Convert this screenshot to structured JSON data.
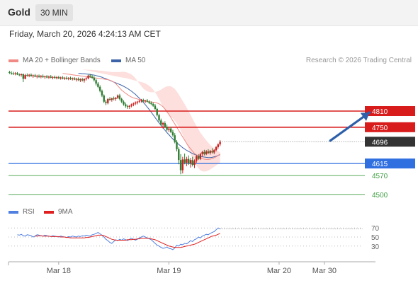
{
  "header": {
    "symbol": "Gold",
    "timeframe": "30 MIN",
    "datetime": "Friday, March 20, 2026 4:24:13 AM CET"
  },
  "legend": {
    "ma20_label": "MA 20 + Bollinger Bands",
    "ma50_label": "MA 50",
    "rsi_label": "RSI",
    "rsi_ma_label": "9MA",
    "research": "Research © 2026 Trading Central"
  },
  "colors": {
    "ma20": "#f08a84",
    "bollinger_fill": "#fdd9d7",
    "ma50": "#3d64a8",
    "bull_candle": "#cc1f1f",
    "bear_candle": "#2e7d32",
    "resistance": "#d81b1b",
    "pivot": "#2f6fe0",
    "support": "#43a047",
    "last_price": "#333333",
    "rsi": "#4f7fe0",
    "rsi_ma": "#e02020",
    "arrow": "#2e5faa"
  },
  "chart_data": {
    "type": "candlestick",
    "instrument": "Gold",
    "timeframe": "30 MIN",
    "x_ticks": [
      "Mar 18",
      "Mar 19",
      "Mar 20",
      "Mar 30"
    ],
    "x_tick_index": [
      25,
      81,
      137,
      160
    ],
    "y_range": [
      4460,
      4960
    ],
    "candles": [
      [
        4955,
        4960,
        4948,
        4952
      ],
      [
        4952,
        4958,
        4945,
        4950
      ],
      [
        4950,
        4956,
        4944,
        4948
      ],
      [
        4948,
        4955,
        4943,
        4951
      ],
      [
        4951,
        4955,
        4944,
        4946
      ],
      [
        4946,
        4950,
        4940,
        4944
      ],
      [
        4944,
        4950,
        4938,
        4947
      ],
      [
        4947,
        4950,
        4918,
        4930
      ],
      [
        4930,
        4948,
        4928,
        4944
      ],
      [
        4944,
        4950,
        4938,
        4942
      ],
      [
        4942,
        4948,
        4936,
        4945
      ],
      [
        4945,
        4950,
        4938,
        4940
      ],
      [
        4940,
        4946,
        4934,
        4943
      ],
      [
        4943,
        4948,
        4936,
        4938
      ],
      [
        4938,
        4945,
        4932,
        4941
      ],
      [
        4941,
        4946,
        4934,
        4937
      ],
      [
        4937,
        4944,
        4932,
        4940
      ],
      [
        4940,
        4946,
        4934,
        4936
      ],
      [
        4936,
        4942,
        4930,
        4939
      ],
      [
        4939,
        4944,
        4932,
        4935
      ],
      [
        4935,
        4942,
        4930,
        4938
      ],
      [
        4938,
        4944,
        4932,
        4934
      ],
      [
        4934,
        4940,
        4928,
        4937
      ],
      [
        4937,
        4942,
        4930,
        4933
      ],
      [
        4933,
        4940,
        4928,
        4936
      ],
      [
        4936,
        4941,
        4929,
        4932
      ],
      [
        4932,
        4938,
        4927,
        4935
      ],
      [
        4935,
        4940,
        4928,
        4931
      ],
      [
        4931,
        4937,
        4926,
        4934
      ],
      [
        4934,
        4939,
        4927,
        4930
      ],
      [
        4930,
        4936,
        4925,
        4933
      ],
      [
        4933,
        4938,
        4926,
        4929
      ],
      [
        4929,
        4935,
        4924,
        4932
      ],
      [
        4932,
        4936,
        4925,
        4927
      ],
      [
        4927,
        4934,
        4920,
        4930
      ],
      [
        4930,
        4935,
        4922,
        4925
      ],
      [
        4925,
        4932,
        4918,
        4928
      ],
      [
        4928,
        4934,
        4920,
        4924
      ],
      [
        4924,
        4932,
        4916,
        4929
      ],
      [
        4929,
        4936,
        4924,
        4932
      ],
      [
        4932,
        4945,
        4928,
        4942
      ],
      [
        4942,
        4948,
        4934,
        4938
      ],
      [
        4938,
        4944,
        4930,
        4934
      ],
      [
        4934,
        4940,
        4920,
        4925
      ],
      [
        4925,
        4930,
        4905,
        4912
      ],
      [
        4912,
        4918,
        4895,
        4900
      ],
      [
        4900,
        4906,
        4880,
        4885
      ],
      [
        4885,
        4890,
        4862,
        4868
      ],
      [
        4868,
        4872,
        4840,
        4845
      ],
      [
        4845,
        4852,
        4832,
        4840
      ],
      [
        4840,
        4858,
        4835,
        4855
      ],
      [
        4855,
        4862,
        4848,
        4852
      ],
      [
        4852,
        4860,
        4845,
        4857
      ],
      [
        4857,
        4864,
        4850,
        4855
      ],
      [
        4855,
        4862,
        4848,
        4860
      ],
      [
        4860,
        4872,
        4855,
        4868
      ],
      [
        4868,
        4874,
        4850,
        4855
      ],
      [
        4855,
        4860,
        4840,
        4845
      ],
      [
        4845,
        4850,
        4830,
        4835
      ],
      [
        4835,
        4842,
        4822,
        4828
      ],
      [
        4828,
        4834,
        4818,
        4826
      ],
      [
        4826,
        4832,
        4818,
        4830
      ],
      [
        4830,
        4838,
        4824,
        4835
      ],
      [
        4835,
        4842,
        4828,
        4838
      ],
      [
        4838,
        4846,
        4832,
        4842
      ],
      [
        4842,
        4848,
        4835,
        4845
      ],
      [
        4845,
        4852,
        4840,
        4848
      ],
      [
        4848,
        4855,
        4842,
        4851
      ],
      [
        4851,
        4856,
        4843,
        4846
      ],
      [
        4846,
        4852,
        4840,
        4849
      ],
      [
        4849,
        4855,
        4842,
        4845
      ],
      [
        4845,
        4850,
        4836,
        4840
      ],
      [
        4840,
        4846,
        4832,
        4836
      ],
      [
        4836,
        4842,
        4826,
        4830
      ],
      [
        4830,
        4836,
        4815,
        4818
      ],
      [
        4818,
        4822,
        4790,
        4795
      ],
      [
        4795,
        4800,
        4770,
        4775
      ],
      [
        4775,
        4782,
        4755,
        4760
      ],
      [
        4760,
        4770,
        4745,
        4765
      ],
      [
        4765,
        4772,
        4748,
        4752
      ],
      [
        4752,
        4760,
        4735,
        4740
      ],
      [
        4740,
        4750,
        4732,
        4745
      ],
      [
        4745,
        4752,
        4728,
        4732
      ],
      [
        4732,
        4740,
        4715,
        4720
      ],
      [
        4720,
        4728,
        4690,
        4695
      ],
      [
        4695,
        4702,
        4660,
        4668
      ],
      [
        4668,
        4675,
        4612,
        4628
      ],
      [
        4628,
        4650,
        4575,
        4590
      ],
      [
        4590,
        4640,
        4578,
        4630
      ],
      [
        4630,
        4652,
        4612,
        4618
      ],
      [
        4618,
        4640,
        4605,
        4632
      ],
      [
        4632,
        4645,
        4610,
        4615
      ],
      [
        4615,
        4636,
        4600,
        4628
      ],
      [
        4628,
        4640,
        4604,
        4610
      ],
      [
        4610,
        4630,
        4598,
        4625
      ],
      [
        4625,
        4648,
        4618,
        4642
      ],
      [
        4642,
        4650,
        4628,
        4632
      ],
      [
        4632,
        4655,
        4628,
        4650
      ],
      [
        4650,
        4662,
        4642,
        4658
      ],
      [
        4658,
        4666,
        4645,
        4650
      ],
      [
        4650,
        4665,
        4646,
        4660
      ],
      [
        4660,
        4668,
        4650,
        4654
      ],
      [
        4654,
        4665,
        4648,
        4662
      ],
      [
        4662,
        4672,
        4652,
        4656
      ],
      [
        4656,
        4668,
        4650,
        4665
      ],
      [
        4665,
        4680,
        4660,
        4676
      ],
      [
        4676,
        4690,
        4670,
        4686
      ],
      [
        4686,
        4702,
        4680,
        4696
      ]
    ],
    "ma20": [
      4950,
      4949,
      4948,
      4947,
      4946,
      4945,
      4944,
      4943,
      4942,
      4941,
      4940,
      4939,
      4938,
      4937,
      4936,
      4935,
      4934,
      4933,
      4932,
      4931,
      4930,
      4929,
      4928,
      4927,
      4925,
      4922,
      4918,
      4912,
      4904,
      4896,
      4888,
      4882,
      4876,
      4871,
      4866,
      4862,
      4859,
      4857,
      4855,
      4853,
      4851,
      4849,
      4847,
      4846,
      4845,
      4844,
      4843,
      4842,
      4840,
      4837,
      4832,
      4826,
      4818,
      4808,
      4797,
      4786,
      4774,
      4762,
      4750,
      4738,
      4726,
      4714,
      4702,
      4690,
      4679,
      4670,
      4661,
      4653,
      4646,
      4640,
      4636,
      4633,
      4631,
      4630,
      4630,
      4631,
      4633,
      4636,
      4640,
      4645,
      4650
    ],
    "ma20_band_upper": [
      4965,
      4965,
      4964,
      4964,
      4963,
      4963,
      4962,
      4962,
      4961,
      4960,
      4960,
      4959,
      4958,
      4957,
      4956,
      4955,
      4955,
      4955,
      4955,
      4955,
      4956,
      4956,
      4955,
      4953,
      4950,
      4946,
      4940,
      4932,
      4922,
      4912,
      4902,
      4894,
      4888,
      4884,
      4881,
      4880,
      4880,
      4881,
      4883,
      4886,
      4890,
      4895,
      4899,
      4902,
      4903,
      4902,
      4898,
      4892,
      4883,
      4872,
      4860,
      4848,
      4836,
      4823,
      4810,
      4796,
      4782,
      4768,
      4754,
      4742,
      4730,
      4720,
      4710,
      4701,
      4692,
      4684,
      4677,
      4671,
      4666,
      4661,
      4657
    ],
    "ma20_band_lower": [
      4935,
      4934,
      4933,
      4931,
      4929,
      4927,
      4925,
      4923,
      4921,
      4920,
      4918,
      4916,
      4913,
      4909,
      4904,
      4898,
      4890,
      4880,
      4868,
      4855,
      4840,
      4826,
      4814,
      4804,
      4796,
      4789,
      4782,
      4774,
      4764,
      4752,
      4738,
      4722,
      4705,
      4688,
      4670,
      4652,
      4635,
      4620,
      4607,
      4597,
      4590,
      4586,
      4585,
      4586,
      4589,
      4593,
      4598,
      4603,
      4608,
      4613,
      4618
    ],
    "ma50": [
      4950,
      4950,
      4949,
      4949,
      4948,
      4947,
      4946,
      4945,
      4944,
      4942,
      4940,
      4938,
      4936,
      4933,
      4930,
      4927,
      4924,
      4921,
      4918,
      4915,
      4912,
      4909,
      4906,
      4902,
      4898,
      4894,
      4889,
      4884,
      4878,
      4872,
      4865,
      4858,
      4850,
      4842,
      4834,
      4825,
      4816,
      4806,
      4796,
      4786,
      4776,
      4766,
      4757,
      4748,
      4739,
      4730,
      4722,
      4714,
      4706,
      4699,
      4692,
      4686,
      4680,
      4674,
      4669,
      4664,
      4660,
      4656,
      4652,
      4649,
      4646,
      4643,
      4641,
      4640,
      4639,
      4638,
      4637,
      4637,
      4638,
      4640,
      4642,
      4645,
      4648
    ],
    "levels": [
      {
        "value": 4810,
        "label": "4810",
        "kind": "resistance"
      },
      {
        "value": 4750,
        "label": "4750",
        "kind": "resistance"
      },
      {
        "value": 4696,
        "label": "4696",
        "kind": "last_price"
      },
      {
        "value": 4615,
        "label": "4615",
        "kind": "pivot"
      },
      {
        "value": 4570,
        "label": "4570",
        "kind": "support"
      },
      {
        "value": 4500,
        "label": "4500",
        "kind": "support"
      }
    ],
    "rsi": {
      "y_range": [
        0,
        100
      ],
      "ticks": [
        70,
        50,
        30
      ],
      "values": [
        55,
        54,
        56,
        53,
        52,
        55,
        54,
        53,
        50,
        52,
        55,
        54,
        53,
        52,
        54,
        53,
        52,
        51,
        53,
        52,
        51,
        50,
        52,
        51,
        50,
        49,
        51,
        50,
        52,
        51,
        50,
        52,
        51,
        53,
        52,
        54,
        53,
        52,
        55,
        56,
        58,
        60,
        57,
        54,
        50,
        45,
        42,
        38,
        36,
        40,
        44,
        42,
        45,
        43,
        46,
        44,
        42,
        45,
        47,
        45,
        43,
        45,
        48,
        50,
        52,
        50,
        48,
        46,
        44,
        40,
        36,
        32,
        30,
        27,
        25,
        26,
        28,
        25,
        24,
        22,
        26,
        32,
        30,
        34,
        33,
        36,
        35,
        38,
        42,
        40,
        44,
        46,
        50,
        48,
        52,
        54,
        56,
        55,
        58,
        60,
        62,
        66,
        70,
        68
      ],
      "ma": [
        52,
        52,
        53,
        53,
        52,
        52,
        52,
        52,
        51,
        51,
        51,
        51,
        51,
        50,
        50,
        50,
        49,
        49,
        48,
        48,
        48,
        48,
        48,
        48,
        48,
        48,
        49,
        49,
        50,
        51,
        52,
        53,
        54,
        54,
        54,
        53,
        51,
        49,
        47,
        45,
        44,
        43,
        43,
        43,
        43,
        43,
        43,
        44,
        44,
        44,
        45,
        45,
        46,
        46,
        47,
        47,
        47,
        47,
        47,
        46,
        45,
        44,
        42,
        40,
        38,
        36,
        34,
        32,
        30,
        29,
        28,
        27,
        27,
        27,
        27,
        28,
        29,
        30,
        31,
        32,
        33,
        34,
        36,
        38,
        40,
        42,
        44,
        46,
        48,
        50,
        52,
        53,
        54,
        56,
        58
      ]
    },
    "arrow": {
      "from_index": 163,
      "from_value": 4700,
      "to_index": 183,
      "to_value": 4805
    }
  }
}
